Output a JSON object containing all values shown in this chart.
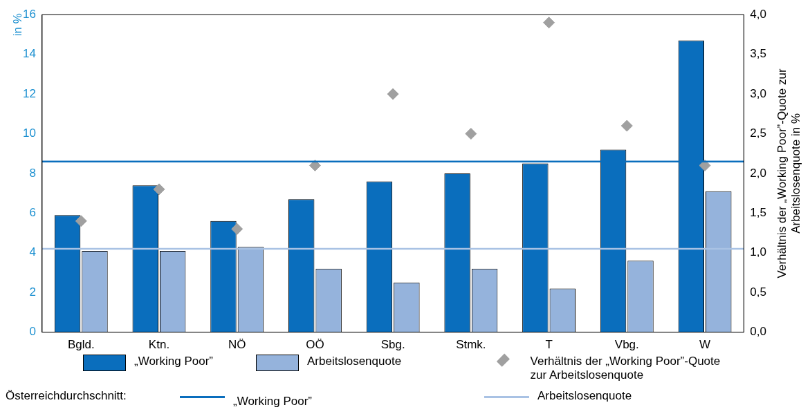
{
  "chart_data": {
    "type": "bar",
    "categories": [
      "Bgld.",
      "Ktn.",
      "NÖ",
      "OÖ",
      "Sbg.",
      "Stmk.",
      "T",
      "Vbg.",
      "W"
    ],
    "series": [
      {
        "name": "„Working Poor”",
        "color": "#0a6ebd",
        "values": [
          5.9,
          7.4,
          5.6,
          6.7,
          7.6,
          8.0,
          8.5,
          9.2,
          14.7
        ]
      },
      {
        "name": "Arbeitslosenquote",
        "color": "#95b3dc",
        "values": [
          4.1,
          4.1,
          4.3,
          3.2,
          2.5,
          3.2,
          2.2,
          3.6,
          7.1
        ]
      },
      {
        "name": "Verhältnis der „Working Poor”-Quote zur Arbeitslosenquote",
        "type": "scatter",
        "axis": "y2",
        "marker": "diamond",
        "color": "#a0a0a0",
        "values": [
          1.4,
          1.8,
          1.3,
          2.1,
          3.0,
          2.5,
          3.9,
          2.6,
          2.1
        ]
      }
    ],
    "ylabel": "in %",
    "y2label": "Verhältnis der „Working Poor”-Quote zur Arbeitslosenquote in %",
    "ylim": [
      0,
      16
    ],
    "yticks": [
      0,
      2,
      4,
      6,
      8,
      10,
      12,
      14,
      16
    ],
    "y2lim": [
      0,
      4
    ],
    "y2ticks": [
      {
        "value": 0,
        "label": "0,0"
      },
      {
        "value": 0.5,
        "label": "0,5"
      },
      {
        "value": 1,
        "label": "1,0"
      },
      {
        "value": 1.5,
        "label": "1,5"
      },
      {
        "value": 2,
        "label": "2,0"
      },
      {
        "value": 2.5,
        "label": "2,5"
      },
      {
        "value": 3,
        "label": "3,0"
      },
      {
        "value": 3.5,
        "label": "3,5"
      },
      {
        "value": 4,
        "label": "4,0"
      }
    ],
    "ref_lines": [
      {
        "axis": "y",
        "value": 8.6,
        "label": "„Working Poor”",
        "color": "#0a6ebd"
      },
      {
        "axis": "y",
        "value": 4.2,
        "label": "Arbeitslosenquote",
        "color": "#a9c2e4"
      }
    ],
    "annotations": [
      "Österreichdurchschnitt:"
    ],
    "grid": false,
    "legend": "bottom"
  }
}
